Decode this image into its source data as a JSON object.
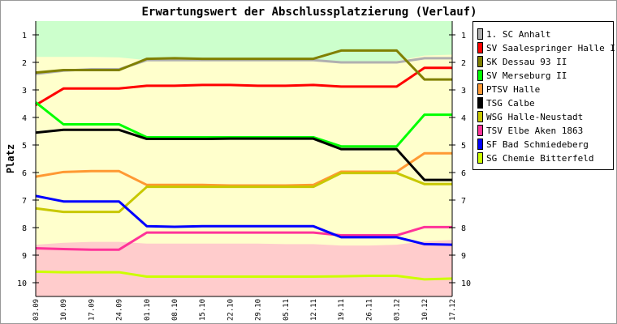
{
  "chart_data": {
    "type": "line",
    "title": "Erwartungswert der Abschlussplatzierung (Verlauf)",
    "ylabel": "Platz",
    "xlabel": "",
    "ylim": [
      0.5,
      10.5
    ],
    "y_inverted": true,
    "yticks": [
      "1",
      "2",
      "3",
      "4",
      "5",
      "6",
      "7",
      "8",
      "9",
      "10"
    ],
    "categories": [
      "03.09",
      "10.09",
      "17.09",
      "24.09",
      "01.10",
      "08.10",
      "15.10",
      "22.10",
      "29.10",
      "05.11",
      "12.11",
      "19.11",
      "26.11",
      "03.12",
      "10.12",
      "17.12"
    ],
    "legend_position": "right",
    "bands": [
      {
        "name": "promotion",
        "color": "#ccffcc",
        "boundary": [
          1.8,
          1.8,
          1.8,
          1.82,
          1.92,
          1.92,
          1.92,
          1.92,
          1.95,
          1.95,
          1.95,
          2.0,
          2.0,
          1.95,
          1.75,
          1.72
        ]
      },
      {
        "name": "middle",
        "color": "#ffffcc"
      },
      {
        "name": "relegation",
        "color": "#ffcccc",
        "boundary": [
          8.62,
          8.55,
          8.52,
          8.52,
          8.58,
          8.58,
          8.58,
          8.58,
          8.58,
          8.6,
          8.6,
          8.65,
          8.65,
          8.62,
          8.5,
          8.45
        ]
      }
    ],
    "series": [
      {
        "name": "1. SC Anhalt",
        "color": "#b0b0b0",
        "values": [
          2.42,
          2.3,
          2.25,
          2.25,
          1.92,
          1.92,
          1.92,
          1.92,
          1.92,
          1.92,
          1.92,
          2.0,
          2.0,
          2.0,
          1.85,
          1.85
        ]
      },
      {
        "name": "SV Saalespringer Halle II",
        "color": "#ff0000",
        "values": [
          3.55,
          2.95,
          2.95,
          2.95,
          2.85,
          2.85,
          2.82,
          2.82,
          2.85,
          2.85,
          2.82,
          2.88,
          2.88,
          2.88,
          2.2,
          2.2
        ]
      },
      {
        "name": "SK Dessau 93 II",
        "color": "#808000",
        "values": [
          2.37,
          2.28,
          2.28,
          2.28,
          1.87,
          1.85,
          1.87,
          1.87,
          1.87,
          1.87,
          1.87,
          1.57,
          1.57,
          1.57,
          2.62,
          2.62
        ]
      },
      {
        "name": "SV Merseburg II",
        "color": "#00ff00",
        "values": [
          3.45,
          4.25,
          4.25,
          4.25,
          4.72,
          4.72,
          4.72,
          4.72,
          4.72,
          4.72,
          4.72,
          5.05,
          5.05,
          5.05,
          3.9,
          3.9
        ]
      },
      {
        "name": "PTSV Halle",
        "color": "#ff9933",
        "values": [
          6.15,
          5.98,
          5.95,
          5.95,
          6.45,
          6.45,
          6.45,
          6.47,
          6.47,
          6.47,
          6.45,
          5.97,
          5.97,
          5.97,
          5.3,
          5.3
        ]
      },
      {
        "name": "TSG Calbe",
        "color": "#000000",
        "values": [
          4.55,
          4.45,
          4.45,
          4.45,
          4.78,
          4.78,
          4.78,
          4.77,
          4.77,
          4.77,
          4.77,
          5.15,
          5.15,
          5.15,
          6.27,
          6.27
        ]
      },
      {
        "name": "WSG Halle-Neustadt",
        "color": "#c8c800",
        "values": [
          7.3,
          7.43,
          7.43,
          7.43,
          6.52,
          6.52,
          6.52,
          6.52,
          6.52,
          6.52,
          6.52,
          6.02,
          6.02,
          6.02,
          6.42,
          6.42
        ]
      },
      {
        "name": "TSV Elbe Aken 1863",
        "color": "#ff3399",
        "values": [
          8.75,
          8.78,
          8.8,
          8.8,
          8.18,
          8.18,
          8.18,
          8.18,
          8.18,
          8.18,
          8.18,
          8.28,
          8.28,
          8.28,
          7.98,
          7.98
        ]
      },
      {
        "name": "SF Bad Schmiedeberg",
        "color": "#0000ff",
        "values": [
          6.85,
          7.05,
          7.05,
          7.05,
          7.95,
          7.97,
          7.95,
          7.95,
          7.95,
          7.95,
          7.95,
          8.35,
          8.35,
          8.35,
          8.6,
          8.62
        ]
      },
      {
        "name": "SG Chemie Bitterfeld",
        "color": "#ccff00",
        "values": [
          9.6,
          9.62,
          9.62,
          9.62,
          9.78,
          9.78,
          9.78,
          9.78,
          9.78,
          9.78,
          9.78,
          9.77,
          9.75,
          9.75,
          9.88,
          9.85
        ]
      }
    ]
  }
}
